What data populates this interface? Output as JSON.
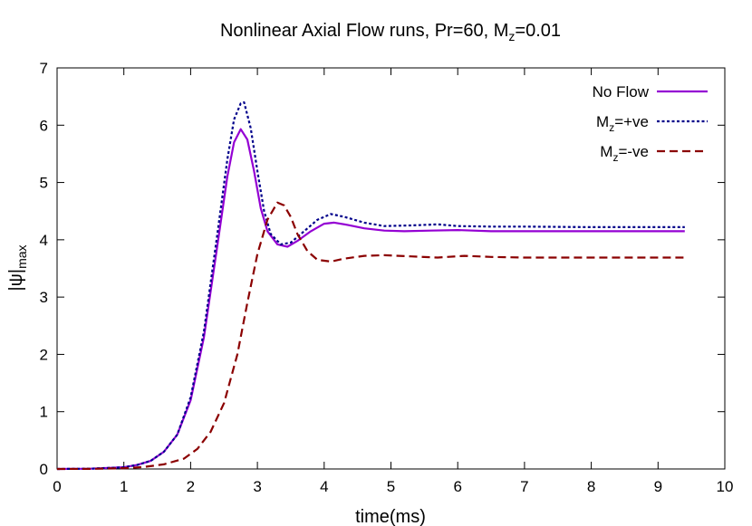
{
  "chart_data": {
    "type": "line",
    "title": {
      "main": "Nonlinear Axial Flow runs, Pr=60, M",
      "sub": "z",
      "tail": "=0.01"
    },
    "xlabel": "time(ms)",
    "ylabel": {
      "main": "|ψ|",
      "sub": "max"
    },
    "xlim": [
      0,
      10
    ],
    "ylim": [
      0,
      7
    ],
    "xticks": [
      "0",
      "1",
      "2",
      "3",
      "4",
      "5",
      "6",
      "7",
      "8",
      "9",
      "10"
    ],
    "yticks": [
      "0",
      "1",
      "2",
      "3",
      "4",
      "5",
      "6",
      "7"
    ],
    "grid": false,
    "legend_position": "top-right",
    "series": [
      {
        "name": {
          "main": "No Flow",
          "sub": "",
          "tail": ""
        },
        "color": "#9400d3",
        "dash": "solid",
        "x": [
          0,
          0.5,
          1.0,
          1.2,
          1.4,
          1.6,
          1.8,
          2.0,
          2.2,
          2.4,
          2.55,
          2.65,
          2.75,
          2.85,
          2.95,
          3.05,
          3.15,
          3.3,
          3.45,
          3.6,
          3.8,
          4.0,
          4.15,
          4.35,
          4.6,
          4.9,
          5.2,
          5.6,
          6.0,
          6.5,
          7.0,
          8.0,
          9.4
        ],
        "y": [
          0,
          0.005,
          0.03,
          0.07,
          0.14,
          0.3,
          0.6,
          1.2,
          2.3,
          3.9,
          5.1,
          5.7,
          5.93,
          5.75,
          5.2,
          4.55,
          4.15,
          3.92,
          3.88,
          3.98,
          4.15,
          4.28,
          4.3,
          4.26,
          4.2,
          4.16,
          4.15,
          4.16,
          4.17,
          4.15,
          4.15,
          4.15,
          4.15
        ]
      },
      {
        "name": {
          "main": "M",
          "sub": "z",
          "tail": "=+ve"
        },
        "color": "#00008b",
        "dash": "dotted",
        "x": [
          0,
          0.5,
          1.0,
          1.2,
          1.4,
          1.6,
          1.8,
          2.0,
          2.2,
          2.4,
          2.55,
          2.65,
          2.75,
          2.8,
          2.9,
          3.0,
          3.1,
          3.2,
          3.35,
          3.5,
          3.7,
          3.9,
          4.1,
          4.3,
          4.6,
          4.9,
          5.3,
          5.7,
          6.0,
          6.5,
          7.0,
          8.0,
          9.4
        ],
        "y": [
          0,
          0.005,
          0.03,
          0.07,
          0.14,
          0.3,
          0.6,
          1.25,
          2.4,
          4.1,
          5.4,
          6.1,
          6.38,
          6.4,
          5.95,
          5.2,
          4.5,
          4.1,
          3.92,
          3.95,
          4.15,
          4.35,
          4.45,
          4.4,
          4.3,
          4.24,
          4.25,
          4.27,
          4.24,
          4.23,
          4.23,
          4.22,
          4.22
        ]
      },
      {
        "name": {
          "main": "M",
          "sub": "z",
          "tail": "=-ve"
        },
        "color": "#8b0000",
        "dash": "dashed",
        "x": [
          0,
          0.5,
          1.0,
          1.3,
          1.6,
          1.9,
          2.1,
          2.3,
          2.5,
          2.7,
          2.85,
          3.0,
          3.15,
          3.3,
          3.4,
          3.5,
          3.6,
          3.75,
          3.9,
          4.1,
          4.3,
          4.6,
          4.9,
          5.3,
          5.7,
          6.1,
          6.5,
          7.0,
          8.0,
          9.4
        ],
        "y": [
          0,
          0.002,
          0.012,
          0.035,
          0.08,
          0.18,
          0.35,
          0.65,
          1.15,
          2.0,
          2.9,
          3.75,
          4.35,
          4.65,
          4.6,
          4.4,
          4.1,
          3.8,
          3.65,
          3.62,
          3.67,
          3.72,
          3.73,
          3.71,
          3.69,
          3.72,
          3.7,
          3.69,
          3.69,
          3.69
        ]
      }
    ]
  }
}
